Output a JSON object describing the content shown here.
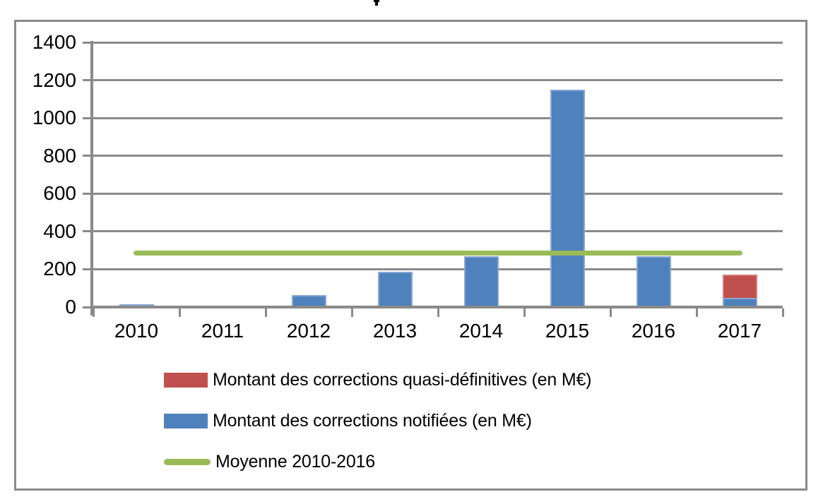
{
  "clipped_title_fragment": "p",
  "colors": {
    "frame_and_grid": "#8a8a8a",
    "bar_blue": "#4F81BD",
    "bar_red": "#C0504D",
    "line_green": "#9BBB59",
    "text": "#000000"
  },
  "chart_data": {
    "type": "bar",
    "title": "",
    "categories": [
      "2010",
      "2011",
      "2012",
      "2013",
      "2014",
      "2015",
      "2016",
      "2017"
    ],
    "series": [
      {
        "name": "Montant des corrections quasi-définitives (en M€)",
        "type": "bar",
        "color": "#C0504D",
        "stacked": true,
        "values": [
          0,
          0,
          0,
          0,
          0,
          0,
          0,
          120
        ]
      },
      {
        "name": "Montant des corrections notifiées (en M€)",
        "type": "bar",
        "color": "#4F81BD",
        "stacked": true,
        "values": [
          15,
          0,
          62,
          185,
          270,
          1150,
          270,
          50
        ]
      },
      {
        "name": "Moyenne 2010-2016",
        "type": "line",
        "color": "#9BBB59",
        "value": 285,
        "values": [
          285,
          285,
          285,
          285,
          285,
          285,
          285,
          285
        ]
      }
    ],
    "xlabel": "",
    "ylabel": "",
    "ylim": [
      0,
      1400
    ],
    "ytick_step": 200,
    "yticks": [
      0,
      200,
      400,
      600,
      800,
      1000,
      1200,
      1400
    ],
    "grid": true,
    "legend_position": "bottom-left"
  }
}
